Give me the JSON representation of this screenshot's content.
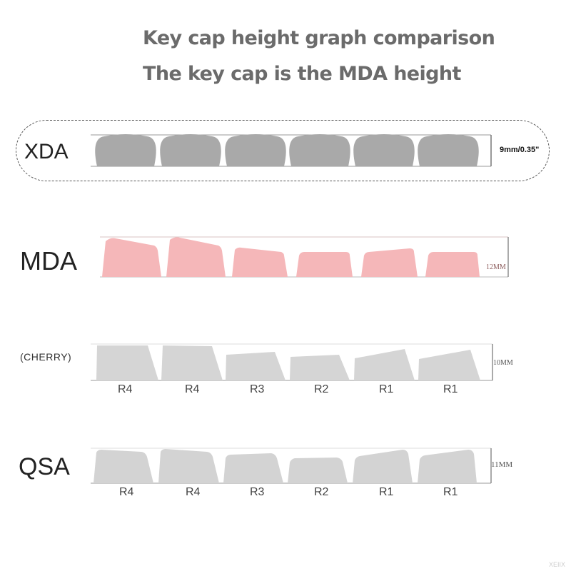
{
  "title": "Key cap height graph comparison",
  "subtitle": "The key cap is the MDA height",
  "profiles": [
    {
      "name": "XDA",
      "height_label": "9mm/0.35\""
    },
    {
      "name": "MDA",
      "height_label": "12MM"
    },
    {
      "name": "(CHERRY)",
      "height_label": "10MM",
      "row_labels": [
        "R4",
        "R4",
        "R3",
        "R2",
        "R1",
        "R1"
      ]
    },
    {
      "name": "QSA",
      "height_label": "11MM",
      "row_labels": [
        "R4",
        "R4",
        "R3",
        "R2",
        "R1",
        "R1"
      ]
    }
  ],
  "colors": {
    "xda_key": "#a9a9a9",
    "mda_key": "#f5b7b9",
    "cherry_key": "#d5d5d5",
    "qsa_key": "#d3d3d3"
  },
  "watermark": "XEIIX"
}
